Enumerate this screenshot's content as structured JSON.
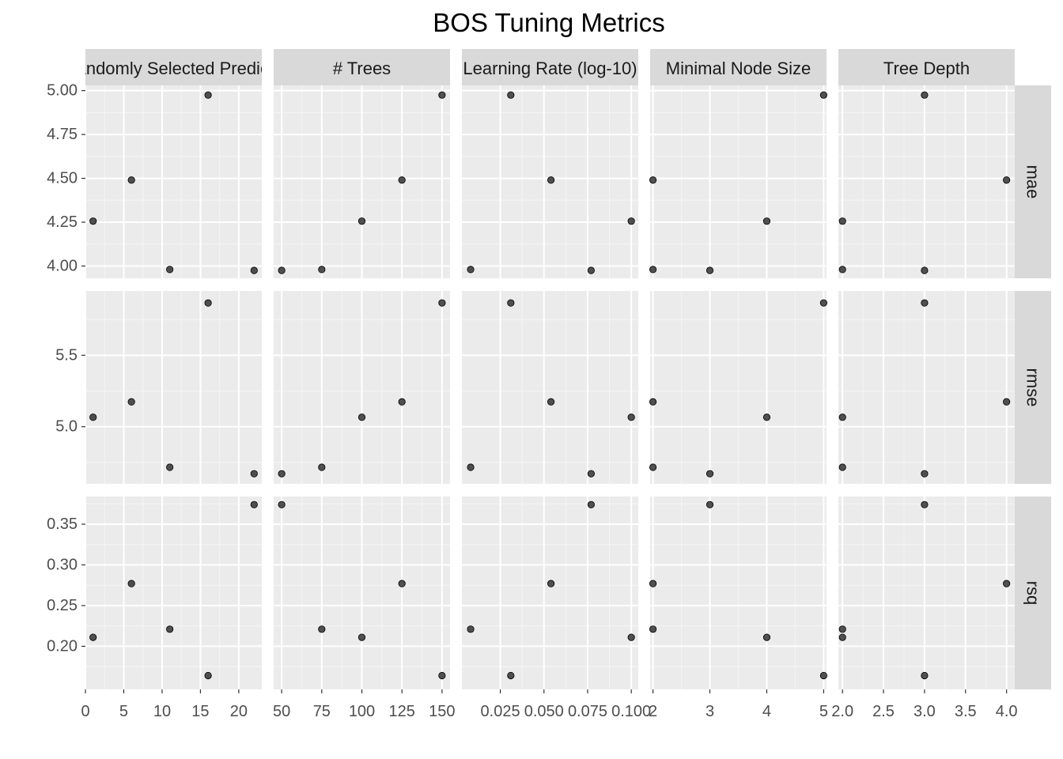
{
  "chart_data": {
    "type": "scatter",
    "title": "BOS Tuning Metrics",
    "xlabel": "",
    "ylabel": "",
    "grid": true,
    "legend": "none",
    "point_color": "#333333",
    "columns": [
      {
        "label": "# Randomly Selected Predictors",
        "xlim": [
          0,
          23
        ],
        "x_ticks": [
          0,
          5,
          10,
          15,
          20
        ],
        "x_tick_labels": [
          "0",
          "5",
          "10",
          "15",
          "20"
        ],
        "x": [
          1,
          6,
          11,
          16,
          22
        ]
      },
      {
        "label": "# Trees",
        "xlim": [
          45,
          155
        ],
        "x_ticks": [
          50,
          75,
          100,
          125,
          150
        ],
        "x_tick_labels": [
          "50",
          "75",
          "100",
          "125",
          "150"
        ],
        "x": [
          100,
          125,
          75,
          150,
          50
        ]
      },
      {
        "label": "Learning Rate (log-10)",
        "xlim": [
          0.003,
          0.104
        ],
        "x_ticks": [
          0.025,
          0.05,
          0.075,
          0.1
        ],
        "x_tick_labels": [
          "0.025",
          "0.050",
          "0.075",
          "0.100"
        ],
        "x": [
          0.1,
          0.054,
          0.008,
          0.031,
          0.077
        ]
      },
      {
        "label": "Minimal Node Size",
        "xlim": [
          1.95,
          5.05
        ],
        "x_ticks": [
          2,
          3,
          4,
          5
        ],
        "x_tick_labels": [
          "2",
          "3",
          "4",
          "5"
        ],
        "x": [
          4,
          2,
          2,
          5,
          3
        ]
      },
      {
        "label": "Tree Depth",
        "xlim": [
          1.95,
          4.1
        ],
        "x_ticks": [
          2.0,
          2.5,
          3.0,
          3.5,
          4.0
        ],
        "x_tick_labels": [
          "2.0",
          "2.5",
          "3.0",
          "3.5",
          "4.0"
        ],
        "x": [
          2,
          4,
          2,
          3,
          3
        ]
      }
    ],
    "rows": [
      {
        "label": "mae",
        "ylim": [
          3.93,
          5.03
        ],
        "y_ticks": [
          4.0,
          4.25,
          4.5,
          4.75,
          5.0
        ],
        "y_tick_labels": [
          "4.00",
          "4.25",
          "4.50",
          "4.75",
          "5.00"
        ],
        "y": [
          4.256,
          4.49,
          3.98,
          4.975,
          3.975
        ]
      },
      {
        "label": "rmse",
        "ylim": [
          4.6,
          5.95
        ],
        "y_ticks": [
          5.0,
          5.5
        ],
        "y_tick_labels": [
          "5.0",
          "5.5"
        ],
        "y": [
          5.066,
          5.174,
          4.716,
          5.866,
          4.671
        ]
      },
      {
        "label": "rsq",
        "ylim": [
          0.147,
          0.384
        ],
        "y_ticks": [
          0.2,
          0.25,
          0.3,
          0.35
        ],
        "y_tick_labels": [
          "0.20",
          "0.25",
          "0.30",
          "0.35"
        ],
        "y": [
          0.211,
          0.277,
          0.221,
          0.164,
          0.374
        ]
      }
    ]
  }
}
